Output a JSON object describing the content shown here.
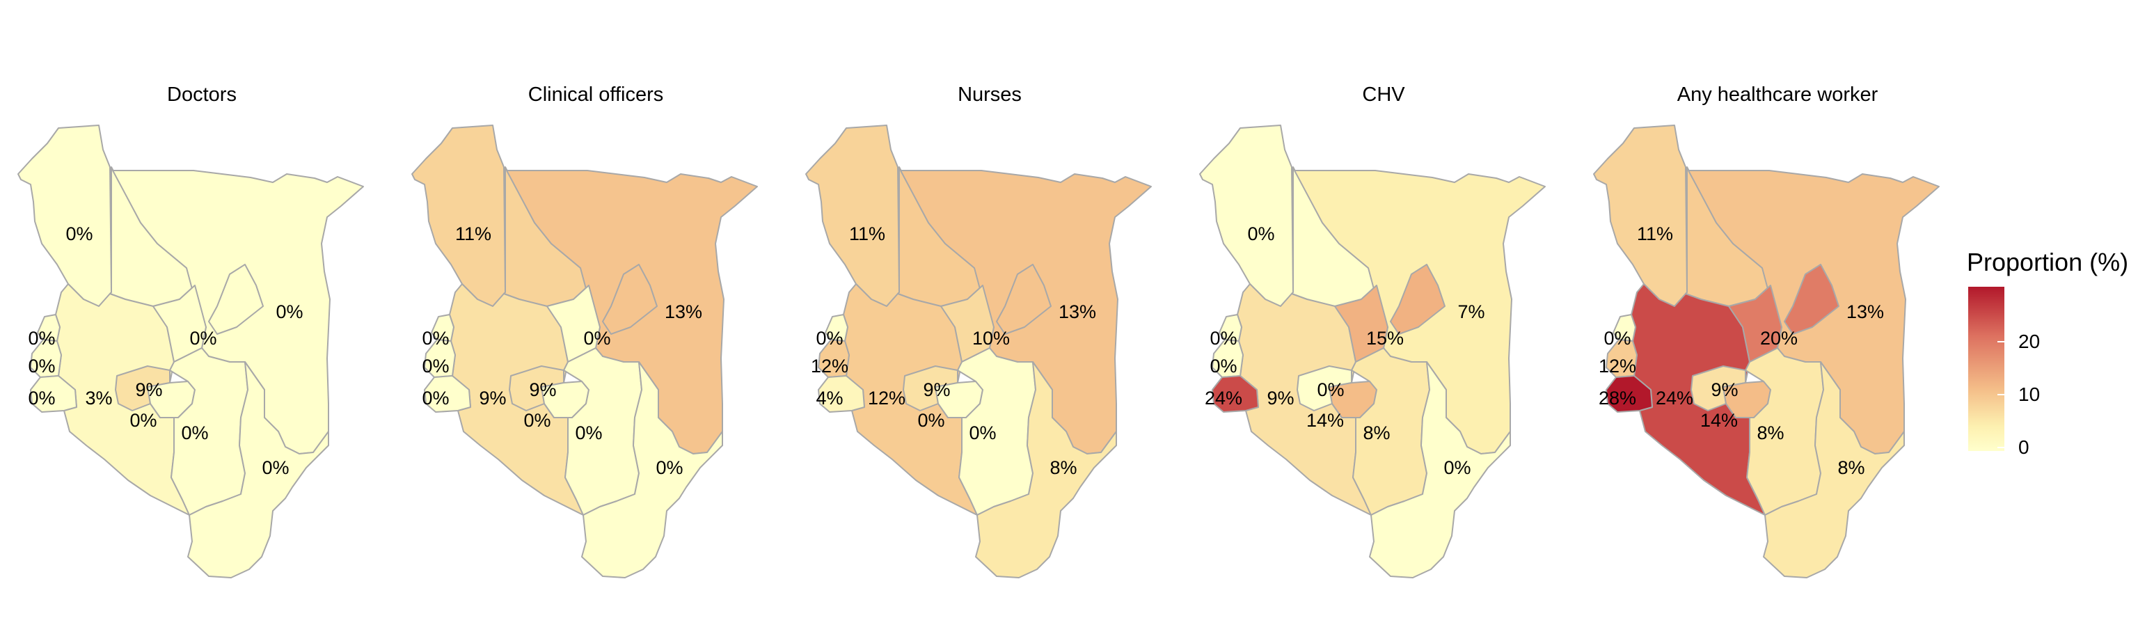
{
  "legend": {
    "title": "Proportion (%)",
    "ticks": [
      "20",
      "10",
      "0"
    ],
    "scale": {
      "min": 0,
      "max": 28,
      "colors": [
        "#ffffcc",
        "#fdf0b0",
        "#f4bd88",
        "#dd7160",
        "#b2182b"
      ]
    }
  },
  "panels": [
    {
      "title": "Doctors",
      "values": {
        "northwest": 0,
        "north": 0,
        "northeast": 0,
        "western_a": 0,
        "western_b": 0,
        "western_c": 0,
        "rift_south": 3,
        "central_north": 0,
        "central": 9,
        "nairobi": 0,
        "eastern": 0,
        "coast": 0
      },
      "labels": {
        "northwest": "0%",
        "northeast": "0%",
        "western_a": "0%",
        "western_b": "0%",
        "western_c": "0%",
        "rift_south": "3%",
        "central_north": "0%",
        "central": "9%",
        "nairobi": "0%",
        "eastern": "0%",
        "coast": "0%"
      }
    },
    {
      "title": "Clinical officers",
      "values": {
        "northwest": 11,
        "north": 11,
        "northeast": 13,
        "western_a": 0,
        "western_b": 0,
        "western_c": 0,
        "rift_south": 9,
        "central_north": 0,
        "central": 9,
        "nairobi": 0,
        "eastern": 0,
        "coast": 0
      },
      "labels": {
        "northwest": "11%",
        "northeast": "13%",
        "western_a": "0%",
        "western_b": "0%",
        "western_c": "0%",
        "rift_south": "9%",
        "central_north": "0%",
        "central": "9%",
        "nairobi": "0%",
        "eastern": "0%",
        "coast": "0%"
      }
    },
    {
      "title": "Nurses",
      "values": {
        "northwest": 11,
        "north": 12,
        "northeast": 13,
        "western_a": 0,
        "western_b": 12,
        "western_c": 4,
        "rift_south": 12,
        "central_north": 10,
        "central": 9,
        "nairobi": 0,
        "eastern": 0,
        "coast": 8
      },
      "labels": {
        "northwest": "11%",
        "northeast": "13%",
        "western_a": "0%",
        "western_b": "12%",
        "western_c": "4%",
        "rift_south": "12%",
        "central_north": "10%",
        "central": "9%",
        "nairobi": "0%",
        "eastern": "0%",
        "coast": "8%"
      }
    },
    {
      "title": "CHV",
      "values": {
        "northwest": 0,
        "north": 0,
        "northeast": 7,
        "northeast_center": 15,
        "western_a": 0,
        "western_b": 0,
        "western_c": 24,
        "rift_south": 9,
        "central_north": 15,
        "central": 0,
        "nairobi": 14,
        "eastern": 8,
        "coast": 0
      },
      "labels": {
        "northwest": "0%",
        "northeast": "7%",
        "western_a": "0%",
        "western_b": "0%",
        "western_c": "24%",
        "rift_south": "9%",
        "central_north": "15%",
        "central": "0%",
        "nairobi": "14%",
        "eastern": "8%",
        "coast": "0%"
      }
    },
    {
      "title": "Any healthcare worker",
      "values": {
        "northwest": 11,
        "north": 12,
        "northeast": 13,
        "northeast_center": 20,
        "western_a": 0,
        "western_b": 12,
        "western_c": 28,
        "rift_south": 24,
        "central_north": 20,
        "central": 9,
        "nairobi": 14,
        "eastern": 8,
        "coast": 8
      },
      "labels": {
        "northwest": "11%",
        "northeast": "13%",
        "western_a": "0%",
        "western_b": "12%",
        "western_c": "28%",
        "rift_south": "24%",
        "central_north": "20%",
        "central": "9%",
        "nairobi": "14%",
        "eastern": "8%",
        "coast": "8%"
      }
    }
  ]
}
